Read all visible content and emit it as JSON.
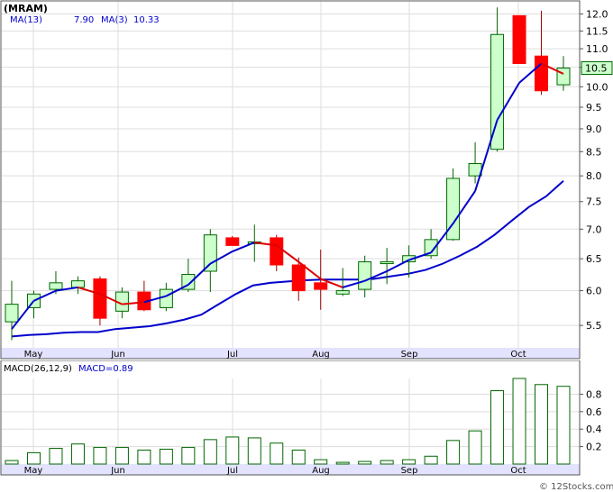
{
  "header": {
    "ticker": "(MRAM)",
    "ma13_label": "MA(13)",
    "ma13_value": "7.90",
    "ma3_label": "MA(3)",
    "ma3_value": "10.33"
  },
  "macd_header": {
    "params": "MACD(26,12,9)",
    "label": "MACD=0.89"
  },
  "watermark": "© 12Stocks.com",
  "last_price_badge": "10.5",
  "colors": {
    "up_fill": "#ccffcc",
    "up_stroke": "#006600",
    "down_fill": "#ff0000",
    "ma13": "#0000cc",
    "ma3_up": "#0000cc",
    "ma3_down": "#dd0000",
    "axis_band": "#e3e3ff",
    "grid": "#dddddd",
    "macd_bar_stroke": "#006600"
  },
  "chart_data": [
    {
      "type": "candlestick",
      "title": "MRAM",
      "ylim": [
        5.2,
        12.4
      ],
      "scale": "log",
      "y_ticks": [
        "5.5",
        "6.0",
        "6.5",
        "7.0",
        "7.5",
        "8.0",
        "8.5",
        "9.0",
        "9.5",
        "10.0",
        "10.5",
        "11.0",
        "11.5",
        "12.0"
      ],
      "x_month_labels": [
        "May",
        "Jun",
        "Jul",
        "Aug",
        "Sep",
        "Oct"
      ],
      "candles": [
        {
          "o": 5.55,
          "h": 6.15,
          "l": 5.3,
          "c": 5.8
        },
        {
          "o": 5.75,
          "h": 6.0,
          "l": 5.6,
          "c": 5.95
        },
        {
          "o": 6.02,
          "h": 6.3,
          "l": 5.95,
          "c": 6.12
        },
        {
          "o": 6.05,
          "h": 6.22,
          "l": 5.95,
          "c": 6.15
        },
        {
          "o": 6.18,
          "h": 6.22,
          "l": 5.5,
          "c": 5.6
        },
        {
          "o": 5.7,
          "h": 6.05,
          "l": 5.6,
          "c": 5.98
        },
        {
          "o": 5.98,
          "h": 6.15,
          "l": 5.7,
          "c": 5.72
        },
        {
          "o": 5.75,
          "h": 6.12,
          "l": 5.7,
          "c": 6.02
        },
        {
          "o": 6.02,
          "h": 6.5,
          "l": 5.98,
          "c": 6.25
        },
        {
          "o": 6.3,
          "h": 7.0,
          "l": 5.98,
          "c": 6.9
        },
        {
          "o": 6.85,
          "h": 6.88,
          "l": 6.72,
          "c": 6.72
        },
        {
          "o": 6.75,
          "h": 7.08,
          "l": 6.45,
          "c": 6.78
        },
        {
          "o": 6.85,
          "h": 6.9,
          "l": 6.3,
          "c": 6.4
        },
        {
          "o": 6.4,
          "h": 6.52,
          "l": 5.85,
          "c": 6.0
        },
        {
          "o": 6.12,
          "h": 6.65,
          "l": 5.72,
          "c": 6.02
        },
        {
          "o": 5.95,
          "h": 6.35,
          "l": 5.92,
          "c": 6.0
        },
        {
          "o": 6.02,
          "h": 6.55,
          "l": 5.9,
          "c": 6.45
        },
        {
          "o": 6.45,
          "h": 6.68,
          "l": 6.1,
          "c": 6.45
        },
        {
          "o": 6.45,
          "h": 6.72,
          "l": 6.2,
          "c": 6.55
        },
        {
          "o": 6.55,
          "h": 7.0,
          "l": 6.5,
          "c": 6.82
        },
        {
          "o": 6.82,
          "h": 8.15,
          "l": 6.8,
          "c": 7.95
        },
        {
          "o": 8.0,
          "h": 8.7,
          "l": 7.85,
          "c": 8.25
        },
        {
          "o": 8.55,
          "h": 12.2,
          "l": 8.5,
          "c": 11.4
        },
        {
          "o": 11.95,
          "h": 11.95,
          "l": 10.6,
          "c": 10.6
        },
        {
          "o": 10.8,
          "h": 12.1,
          "l": 9.8,
          "c": 9.9
        },
        {
          "o": 10.05,
          "h": 10.8,
          "l": 9.9,
          "c": 10.48
        }
      ],
      "ma13": [
        5.35,
        5.37,
        5.38,
        5.4,
        5.41,
        5.41,
        5.45,
        5.47,
        5.49,
        5.53,
        5.58,
        5.65,
        5.8,
        5.95,
        6.08,
        6.12,
        6.14,
        6.16,
        6.17,
        6.17,
        6.17,
        6.18,
        6.22,
        6.26,
        6.32,
        6.42,
        6.55,
        6.7,
        6.9,
        7.15,
        7.4,
        7.6,
        7.9
      ],
      "ma3": [
        5.45,
        5.85,
        6.0,
        6.05,
        5.95,
        5.8,
        5.83,
        5.92,
        6.09,
        6.42,
        6.62,
        6.77,
        6.72,
        6.45,
        6.18,
        6.05,
        6.15,
        6.3,
        6.48,
        6.6,
        7.1,
        7.7,
        9.2,
        10.1,
        10.6,
        10.33
      ],
      "ma3_dir": [
        "up",
        "up",
        "up",
        "up",
        "down",
        "down",
        "down",
        "up",
        "up",
        "up",
        "up",
        "up",
        "down",
        "down",
        "down",
        "down",
        "up",
        "up",
        "up",
        "up",
        "up",
        "up",
        "up",
        "up",
        "up",
        "down"
      ]
    },
    {
      "type": "bar",
      "title": "MACD(26,12,9)",
      "ylim": [
        0,
        0.98
      ],
      "y_ticks": [
        "0.2",
        "0.4",
        "0.6",
        "0.8"
      ],
      "x_month_labels": [
        "May",
        "Jun",
        "Jul",
        "Aug",
        "Sep",
        "Oct"
      ],
      "values": [
        0.04,
        0.13,
        0.18,
        0.23,
        0.19,
        0.19,
        0.16,
        0.17,
        0.19,
        0.28,
        0.31,
        0.3,
        0.24,
        0.16,
        0.05,
        0.02,
        0.03,
        0.04,
        0.05,
        0.09,
        0.27,
        0.38,
        0.84,
        0.98,
        0.91,
        0.89
      ]
    }
  ]
}
